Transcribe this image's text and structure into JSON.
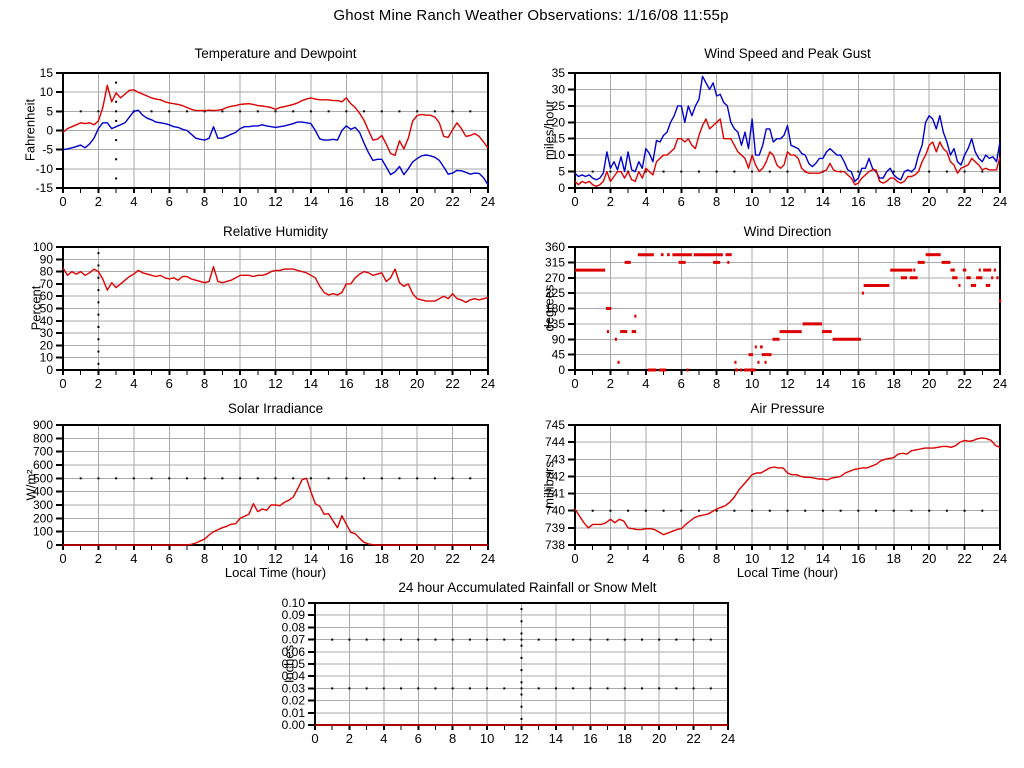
{
  "page": {
    "title": "Ghost Mine Ranch Weather Observations: 1/16/08 11:55p",
    "background": "#ffffff"
  },
  "colors": {
    "red": "#dd0000",
    "blue": "#0000cc",
    "grid": "#aaaaaa",
    "frame": "#000000",
    "dots": "#000000"
  },
  "x_axis": {
    "min": 0,
    "max": 24,
    "major_step": 2,
    "minor_step": 1,
    "label": "Local Time (hour)"
  },
  "chart_data": [
    {
      "id": "temperature_dewpoint",
      "type": "line",
      "title": "Temperature and Dewpoint",
      "ylabel": "Fahrenheit",
      "ymin": -15,
      "ymax": 15,
      "ystep": 5,
      "y_decimals": 0,
      "grid": true,
      "dot_rows": [
        5
      ],
      "dot_cols": [
        3
      ],
      "series": [
        {
          "name": "temperature",
          "color": "red",
          "xstep": 0.25,
          "values": [
            -0.5,
            0.5,
            1,
            1.5,
            2,
            1.8,
            2,
            1.5,
            2.5,
            6,
            11.8,
            7.5,
            9.8,
            8.5,
            9.5,
            10.5,
            10.6,
            10,
            9.5,
            9,
            8.5,
            8.2,
            8,
            7.5,
            7.2,
            7,
            6.8,
            6.5,
            6,
            5.5,
            5.2,
            5.2,
            5.2,
            5.3,
            5.2,
            5.3,
            5.5,
            6,
            6.3,
            6.5,
            6.8,
            6.9,
            7,
            6.8,
            6.5,
            6.4,
            6.2,
            6,
            5.5,
            6,
            6.2,
            6.5,
            6.8,
            7.2,
            7.8,
            8.2,
            8.5,
            8.2,
            8,
            8,
            8,
            7.8,
            7.8,
            7.5,
            8.5,
            7,
            6,
            4.5,
            2.7,
            0,
            -2.5,
            -2.3,
            -1.3,
            -3.5,
            -6,
            -6.5,
            -2.7,
            -4.8,
            -2,
            2.5,
            3.9,
            4.2,
            4,
            4,
            3.5,
            2,
            -1.5,
            -1.8,
            0.2,
            2,
            0.5,
            -1.5,
            -1.3,
            -0.8,
            -1.5,
            -3,
            -4.5
          ]
        },
        {
          "name": "dewpoint",
          "color": "blue",
          "xstep": 0.25,
          "values": [
            -5,
            -4.8,
            -4.5,
            -4.2,
            -3.8,
            -4.5,
            -3.5,
            -2,
            0.5,
            2,
            2,
            0.5,
            1,
            1.5,
            2,
            3.5,
            5,
            5.3,
            4,
            3.2,
            2.8,
            2.2,
            2,
            1.8,
            1.5,
            1,
            0.8,
            0.3,
            0,
            -1,
            -2,
            -2.3,
            -2.5,
            -2,
            1,
            -2,
            -2,
            -1.5,
            -1,
            -0.5,
            0.5,
            1,
            1,
            1.2,
            1.2,
            1.5,
            1.2,
            1,
            0.8,
            1,
            1.2,
            1.5,
            1.8,
            2.2,
            2.2,
            2,
            1.8,
            0,
            -2.2,
            -2.5,
            -2.5,
            -2.3,
            -2.5,
            0,
            1.2,
            0.3,
            0.8,
            -0.5,
            -3.3,
            -5.8,
            -7.8,
            -7.5,
            -7.5,
            -9.5,
            -11.5,
            -10.8,
            -9.4,
            -11.5,
            -10,
            -8.2,
            -7.3,
            -6.6,
            -6.4,
            -6.6,
            -7,
            -7.8,
            -9.5,
            -11.4,
            -11.1,
            -10.4,
            -10.5,
            -10.9,
            -11.4,
            -11.1,
            -11.2,
            -12.3,
            -14.2
          ]
        }
      ]
    },
    {
      "id": "wind_speed_gust",
      "type": "line",
      "title": "Wind Speed and Peak Gust",
      "ylabel": "miles/hour",
      "ymin": 0,
      "ymax": 35,
      "ystep": 5,
      "y_decimals": 0,
      "grid": true,
      "dot_rows": [
        5
      ],
      "dot_cols": [],
      "series": [
        {
          "name": "peak_gust",
          "color": "blue",
          "xstep": 0.2,
          "values": [
            4.5,
            3.5,
            4,
            3.5,
            4,
            3,
            2.5,
            3,
            4.5,
            11,
            6,
            8,
            5.5,
            9.5,
            5,
            11,
            5.5,
            5,
            8,
            6,
            12,
            10.5,
            8,
            14.5,
            14,
            16,
            17,
            20,
            22,
            25,
            25,
            20,
            25,
            22,
            25,
            27,
            34,
            32,
            30,
            32,
            28,
            28.5,
            26,
            25,
            20,
            18,
            17,
            13,
            17,
            12,
            21,
            10,
            10,
            13,
            18,
            18,
            14,
            15,
            15,
            16,
            19,
            13,
            12.5,
            12,
            10.5,
            10,
            7.5,
            6.5,
            7.5,
            9,
            9,
            11,
            12,
            11,
            10,
            10,
            8,
            5.5,
            5,
            2,
            3,
            6,
            6,
            9,
            6,
            5,
            3,
            3,
            5,
            6,
            4,
            3,
            2.5,
            5,
            5.5,
            5,
            6,
            10,
            13,
            20,
            22,
            21,
            18,
            22,
            17,
            14,
            10,
            12,
            8,
            7,
            10,
            12,
            15,
            11,
            9,
            8,
            10,
            9,
            9.5,
            8,
            14
          ]
        },
        {
          "name": "wind_speed",
          "color": "red",
          "xstep": 0.2,
          "values": [
            2,
            1,
            2,
            1.5,
            2,
            1,
            0.5,
            1,
            2,
            5,
            2,
            3.5,
            5,
            5,
            3,
            5,
            2.5,
            2,
            5,
            3,
            6,
            5,
            4,
            8,
            9,
            10,
            10,
            11,
            12,
            15,
            15,
            14,
            15,
            13,
            12,
            16,
            19,
            21,
            18,
            19,
            20,
            21,
            15,
            15,
            15,
            13,
            11,
            10,
            9,
            6,
            10,
            7,
            5,
            6,
            8,
            11,
            10,
            7,
            6,
            7,
            11,
            10,
            10,
            9,
            6,
            5,
            4.5,
            4.5,
            4.5,
            4.5,
            5,
            5.5,
            7.5,
            5.5,
            5,
            5,
            5,
            4,
            3,
            1,
            1.5,
            3,
            4,
            5,
            5.5,
            5.5,
            2,
            1.5,
            2,
            3,
            3,
            2,
            1.5,
            2,
            3.5,
            3.5,
            4,
            5,
            8,
            10,
            13,
            14,
            11,
            14,
            12,
            11,
            8,
            7,
            4.5,
            6,
            6.5,
            7,
            9,
            8,
            7,
            5.5,
            6,
            5.5,
            5.5,
            5.5,
            9.5
          ]
        }
      ]
    },
    {
      "id": "relative_humidity",
      "type": "line",
      "title": "Relative Humidity",
      "ylabel": "Percent",
      "ymin": 0,
      "ymax": 100,
      "ystep": 10,
      "y_decimals": 0,
      "grid": true,
      "dot_rows": [],
      "dot_cols": [
        2
      ],
      "series": [
        {
          "name": "humidity",
          "color": "red",
          "xstep": 0.25,
          "values": [
            83,
            77,
            80,
            78,
            80,
            77,
            79,
            82,
            80,
            74,
            65,
            71,
            67,
            70,
            73,
            76,
            78,
            81,
            79,
            78,
            77,
            76,
            77,
            75,
            74,
            75,
            73,
            76,
            76,
            74,
            73,
            72,
            71,
            72,
            84,
            72,
            71,
            72,
            73,
            75,
            77,
            77,
            77,
            76,
            77,
            77,
            78,
            80,
            81,
            81,
            82,
            82,
            82,
            81,
            80,
            79,
            77,
            75,
            68,
            63,
            61,
            62,
            61,
            63,
            70,
            70,
            75,
            78,
            80,
            79,
            77,
            78,
            79,
            72,
            75,
            82,
            71,
            68,
            70,
            62,
            58,
            57,
            56,
            56,
            56,
            58,
            60,
            58,
            62,
            58,
            57,
            55,
            57,
            58,
            57,
            58,
            59
          ]
        }
      ]
    },
    {
      "id": "wind_direction",
      "type": "segments",
      "title": "Wind Direction",
      "ylabel": "degrees",
      "ymin": 0,
      "ymax": 360,
      "ystep": 45,
      "y_decimals": 0,
      "grid": true,
      "dot_rows": [],
      "dot_cols": [],
      "segment_color": "red",
      "segments": [
        [
          0,
          1.7,
          292.5
        ],
        [
          1.75,
          2.05,
          180
        ],
        [
          1.8,
          1.9,
          112.5
        ],
        [
          2.25,
          2.35,
          90
        ],
        [
          2.4,
          2.5,
          22.5
        ],
        [
          2.55,
          2.95,
          112.5
        ],
        [
          2.8,
          3.15,
          315
        ],
        [
          3.2,
          3.45,
          112.5
        ],
        [
          3.35,
          3.45,
          157.5
        ],
        [
          3.55,
          4.45,
          337.5
        ],
        [
          4.1,
          4.6,
          0
        ],
        [
          4.75,
          5.15,
          0
        ],
        [
          4.85,
          5.0,
          337.5
        ],
        [
          5.2,
          5.35,
          337.5
        ],
        [
          5.5,
          6.6,
          337.5
        ],
        [
          5.85,
          6.25,
          315
        ],
        [
          6.3,
          6.4,
          0
        ],
        [
          6.7,
          8.35,
          337.5
        ],
        [
          7.8,
          8.2,
          315
        ],
        [
          8.5,
          8.85,
          337.5
        ],
        [
          8.6,
          8.7,
          315
        ],
        [
          9.0,
          9.1,
          22.5
        ],
        [
          9.05,
          9.2,
          0
        ],
        [
          9.3,
          9.45,
          0
        ],
        [
          9.55,
          10.2,
          0
        ],
        [
          9.8,
          10.05,
          45
        ],
        [
          10.15,
          10.25,
          67.5
        ],
        [
          10.3,
          10.4,
          22.5
        ],
        [
          10.45,
          10.6,
          67.5
        ],
        [
          10.55,
          11.1,
          45
        ],
        [
          10.7,
          10.8,
          22.5
        ],
        [
          11.15,
          11.55,
          90
        ],
        [
          11.55,
          12.8,
          112.5
        ],
        [
          12.85,
          13.95,
          135
        ],
        [
          13.95,
          14.5,
          112.5
        ],
        [
          14.55,
          16.15,
          90
        ],
        [
          16.2,
          16.25,
          225
        ],
        [
          16.3,
          17.75,
          247.5
        ],
        [
          17.8,
          19.05,
          292.5
        ],
        [
          18.4,
          18.75,
          270
        ],
        [
          18.9,
          19.35,
          270
        ],
        [
          19.1,
          19.2,
          292.5
        ],
        [
          19.35,
          19.75,
          315
        ],
        [
          19.8,
          20.65,
          337.5
        ],
        [
          20.7,
          21.2,
          315
        ],
        [
          21.2,
          21.45,
          292.5
        ],
        [
          21.3,
          21.6,
          270
        ],
        [
          21.65,
          21.75,
          247.5
        ],
        [
          21.9,
          22.1,
          292.5
        ],
        [
          22.1,
          22.35,
          270
        ],
        [
          22.35,
          22.65,
          247.5
        ],
        [
          22.65,
          23.0,
          270
        ],
        [
          22.8,
          22.9,
          292.5
        ],
        [
          23.05,
          23.5,
          292.5
        ],
        [
          23.2,
          23.45,
          247.5
        ],
        [
          23.5,
          23.6,
          270
        ],
        [
          23.65,
          23.75,
          292.5
        ],
        [
          23.8,
          23.9,
          270
        ],
        [
          23.95,
          24.0,
          202.5
        ]
      ]
    },
    {
      "id": "solar_irradiance",
      "type": "line",
      "title": "Solar Irradiance",
      "ylabel": "W/m²",
      "ymin": 0,
      "ymax": 900,
      "ystep": 100,
      "y_decimals": 0,
      "grid": true,
      "dot_rows": [
        500
      ],
      "dot_cols": [],
      "series": [
        {
          "name": "solar",
          "color": "red",
          "xstep": 0.25,
          "values": [
            0,
            0,
            0,
            0,
            0,
            0,
            0,
            0,
            0,
            0,
            0,
            0,
            0,
            0,
            0,
            0,
            0,
            0,
            0,
            0,
            0,
            0,
            0,
            0,
            0,
            0,
            0,
            0,
            0,
            5,
            15,
            30,
            45,
            75,
            100,
            115,
            130,
            140,
            155,
            160,
            200,
            215,
            230,
            310,
            250,
            270,
            260,
            300,
            300,
            295,
            320,
            335,
            360,
            420,
            490,
            500,
            400,
            310,
            290,
            230,
            235,
            180,
            130,
            220,
            155,
            95,
            85,
            50,
            20,
            8,
            2,
            0,
            0,
            0,
            0,
            0,
            0,
            0,
            0,
            0,
            0,
            0,
            0,
            0,
            0,
            0,
            0,
            0,
            0,
            0,
            0,
            0,
            0,
            0,
            0,
            0,
            0
          ]
        }
      ]
    },
    {
      "id": "air_pressure",
      "type": "line",
      "title": "Air Pressure",
      "ylabel": "millibars",
      "ymin": 738,
      "ymax": 745,
      "ystep": 1,
      "y_decimals": 0,
      "grid": true,
      "dot_rows": [
        740
      ],
      "dot_cols": [],
      "series": [
        {
          "name": "pressure",
          "color": "red",
          "xstep": 0.25,
          "values": [
            740.1,
            739.7,
            739.3,
            739,
            739.2,
            739.2,
            739.2,
            739.3,
            739.5,
            739.3,
            739.5,
            739.4,
            739,
            738.95,
            738.9,
            738.9,
            738.95,
            738.95,
            738.9,
            738.75,
            738.6,
            738.7,
            738.8,
            738.9,
            738.95,
            739.2,
            739.4,
            739.6,
            739.7,
            739.75,
            739.8,
            739.95,
            740.1,
            740.2,
            740.3,
            740.5,
            740.8,
            741.2,
            741.5,
            741.8,
            742.1,
            742.2,
            742.2,
            742.35,
            742.5,
            742.55,
            742.5,
            742.5,
            742.2,
            742.1,
            742.1,
            742,
            741.95,
            741.95,
            741.9,
            741.85,
            741.85,
            741.8,
            741.9,
            741.95,
            742,
            742.2,
            742.3,
            742.4,
            742.45,
            742.5,
            742.5,
            742.6,
            742.7,
            742.9,
            743,
            743.05,
            743.1,
            743.3,
            743.35,
            743.3,
            743.5,
            743.55,
            743.6,
            743.65,
            743.65,
            743.65,
            743.7,
            743.75,
            743.75,
            743.7,
            743.8,
            744,
            744.1,
            744.05,
            744.1,
            744.2,
            744.25,
            744.2,
            744.1,
            743.8,
            743.7
          ]
        }
      ]
    },
    {
      "id": "rainfall",
      "type": "line",
      "title": "24 hour Accumulated Rainfall or Snow Melt",
      "ylabel": "Inches",
      "ymin": 0,
      "ymax": 0.1,
      "ystep": 0.01,
      "y_decimals": 2,
      "grid": true,
      "dot_rows": [
        0.03,
        0.07
      ],
      "dot_cols": [
        12
      ],
      "series": [
        {
          "name": "rainfall",
          "color": "red",
          "xstep": 24,
          "values": [
            0,
            0
          ]
        }
      ]
    }
  ]
}
